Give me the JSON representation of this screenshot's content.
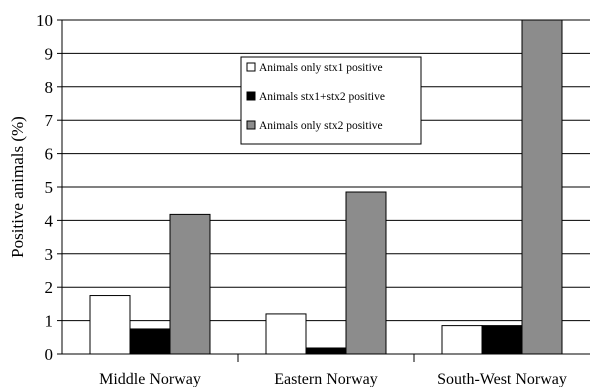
{
  "chart_data": {
    "type": "bar",
    "title": "",
    "xlabel": "",
    "ylabel": "Positive animals (%)",
    "categories": [
      "Middle Norway",
      "Eastern Norway",
      "South-West Norway"
    ],
    "series": [
      {
        "name": "Animals only stx1 positive",
        "values": [
          1.75,
          1.2,
          0.85
        ],
        "color": "#ffffff"
      },
      {
        "name": "Animals stx1+stx2 positive",
        "values": [
          0.75,
          0.18,
          0.85
        ],
        "color": "#000000"
      },
      {
        "name": "Animals only stx2 positive",
        "values": [
          4.18,
          4.85,
          10.0
        ],
        "color": "#8c8c8c"
      }
    ],
    "ylim": [
      0,
      10
    ],
    "yticks": [
      "0",
      "1",
      "2",
      "3",
      "4",
      "5",
      "6",
      "7",
      "8",
      "9",
      "10"
    ],
    "grid": true,
    "legend": "upper-center"
  }
}
